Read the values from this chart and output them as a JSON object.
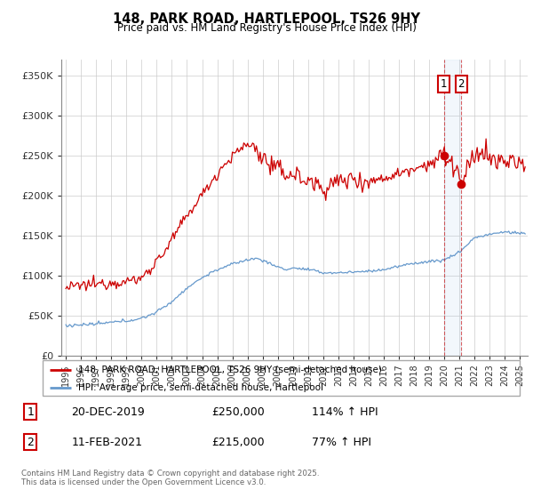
{
  "title_line1": "148, PARK ROAD, HARTLEPOOL, TS26 9HY",
  "title_line2": "Price paid vs. HM Land Registry's House Price Index (HPI)",
  "ylabel_ticks": [
    "£0",
    "£50K",
    "£100K",
    "£150K",
    "£200K",
    "£250K",
    "£300K",
    "£350K"
  ],
  "ytick_vals": [
    0,
    50000,
    100000,
    150000,
    200000,
    250000,
    300000,
    350000
  ],
  "ylim": [
    0,
    370000
  ],
  "xlim_start": 1994.7,
  "xlim_end": 2025.5,
  "red_line_color": "#cc0000",
  "blue_line_color": "#6699cc",
  "marker1_date_x": 2019.96,
  "marker1_price": 250000,
  "marker2_date_x": 2021.12,
  "marker2_price": 215000,
  "legend_line1": "148, PARK ROAD, HARTLEPOOL, TS26 9HY (semi-detached house)",
  "legend_line2": "HPI: Average price, semi-detached house, Hartlepool",
  "table_row1_num": "1",
  "table_row1_date": "20-DEC-2019",
  "table_row1_price": "£250,000",
  "table_row1_hpi": "114% ↑ HPI",
  "table_row2_num": "2",
  "table_row2_date": "11-FEB-2021",
  "table_row2_price": "£215,000",
  "table_row2_hpi": "77% ↑ HPI",
  "footer": "Contains HM Land Registry data © Crown copyright and database right 2025.\nThis data is licensed under the Open Government Licence v3.0.",
  "background_color": "#ffffff",
  "grid_color": "#cccccc",
  "span_color": "#ddeeff",
  "xtick_years": [
    1995,
    1996,
    1997,
    1998,
    1999,
    2000,
    2001,
    2002,
    2003,
    2004,
    2005,
    2006,
    2007,
    2008,
    2009,
    2010,
    2011,
    2012,
    2013,
    2014,
    2015,
    2016,
    2017,
    2018,
    2019,
    2020,
    2021,
    2022,
    2023,
    2024,
    2025
  ]
}
